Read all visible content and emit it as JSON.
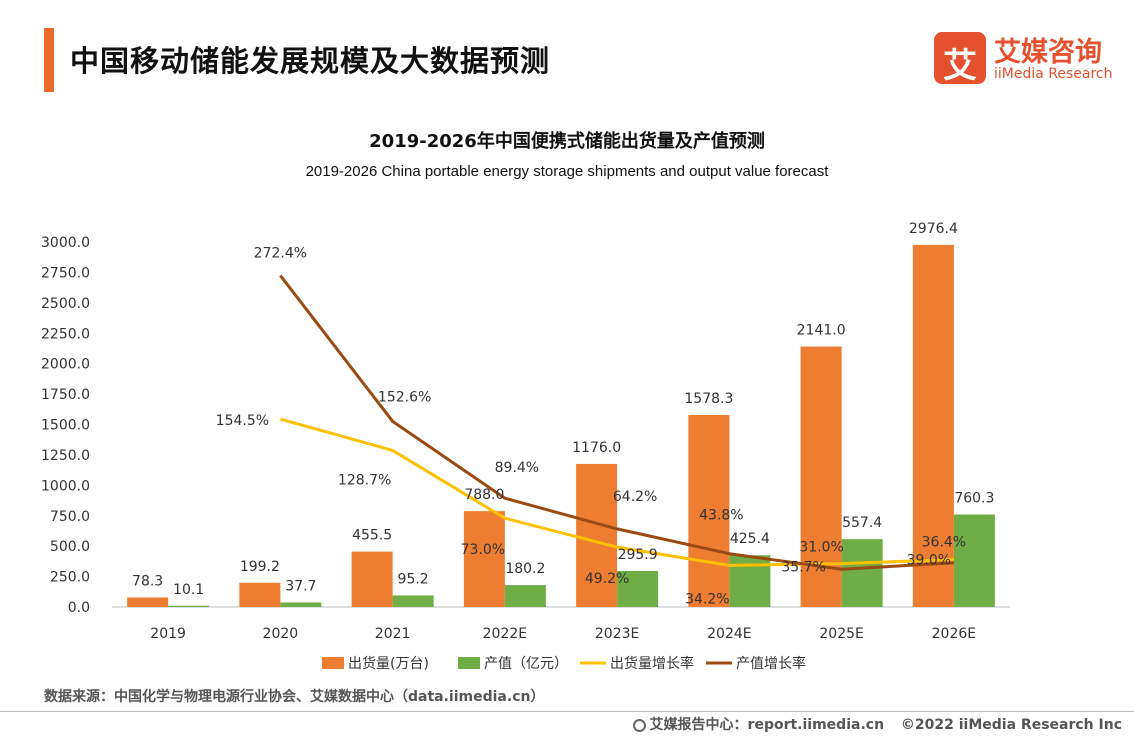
{
  "header": {
    "page_title": "中国移动储能发展规模及大数据预测",
    "logo_icon": "艾",
    "logo_cn": "艾媒咨询",
    "logo_en": "iiMedia Research"
  },
  "footer": {
    "source": "数据来源：中国化学与物理电源行业协会、艾媒数据中心（data.iimedia.cn）",
    "report_site": "艾媒报告中心：report.iimedia.cn",
    "copyright": "©2022  iiMedia Research  Inc"
  },
  "chart_data": {
    "type": "bar",
    "title": "2019-2026年中国便携式储能出货量及产值预测",
    "subtitle": "2019-2026 China portable energy storage shipments and output value forecast",
    "categories": [
      "2019",
      "2020",
      "2021",
      "2022E",
      "2023E",
      "2024E",
      "2025E",
      "2026E"
    ],
    "ylim": [
      0,
      3000
    ],
    "yticks": [
      "0.0",
      "250.0",
      "500.0",
      "750.0",
      "1000.0",
      "1250.0",
      "1500.0",
      "1750.0",
      "2000.0",
      "2250.0",
      "2500.0",
      "2750.0",
      "3000.0"
    ],
    "legend_position": "bottom",
    "series": [
      {
        "name": "出货量(万台)",
        "kind": "bar",
        "color": "#ed7d31",
        "values": [
          78.3,
          199.2,
          455.5,
          788.0,
          1176.0,
          1578.3,
          2141.0,
          2976.4
        ],
        "labels": [
          "78.3",
          "199.2",
          "455.5",
          "788.0",
          "1176.0",
          "1578.3",
          "2141.0",
          "2976.4"
        ]
      },
      {
        "name": "产值（亿元）",
        "kind": "bar",
        "color": "#70ad47",
        "values": [
          10.1,
          37.7,
          95.2,
          180.2,
          295.9,
          425.4,
          557.4,
          760.3
        ],
        "labels": [
          "10.1",
          "37.7",
          "95.2",
          "180.2",
          "295.9",
          "425.4",
          "557.4",
          "760.3"
        ]
      },
      {
        "name": "出货量增长率",
        "kind": "line",
        "color": "#ffc000",
        "values": [
          null,
          154.5,
          128.7,
          73.0,
          49.2,
          34.2,
          35.7,
          39.0
        ],
        "labels": [
          "",
          "154.5%",
          "128.7%",
          "73.0%",
          "49.2%",
          "34.2%",
          "35.7%",
          "39.0%"
        ]
      },
      {
        "name": "产值增长率",
        "kind": "line",
        "color": "#9c4a13",
        "values": [
          null,
          272.4,
          152.6,
          89.4,
          64.2,
          43.8,
          31.0,
          36.4
        ],
        "labels": [
          "",
          "272.4%",
          "152.6%",
          "89.4%",
          "64.2%",
          "43.8%",
          "31.0%",
          "36.4%"
        ]
      }
    ]
  }
}
